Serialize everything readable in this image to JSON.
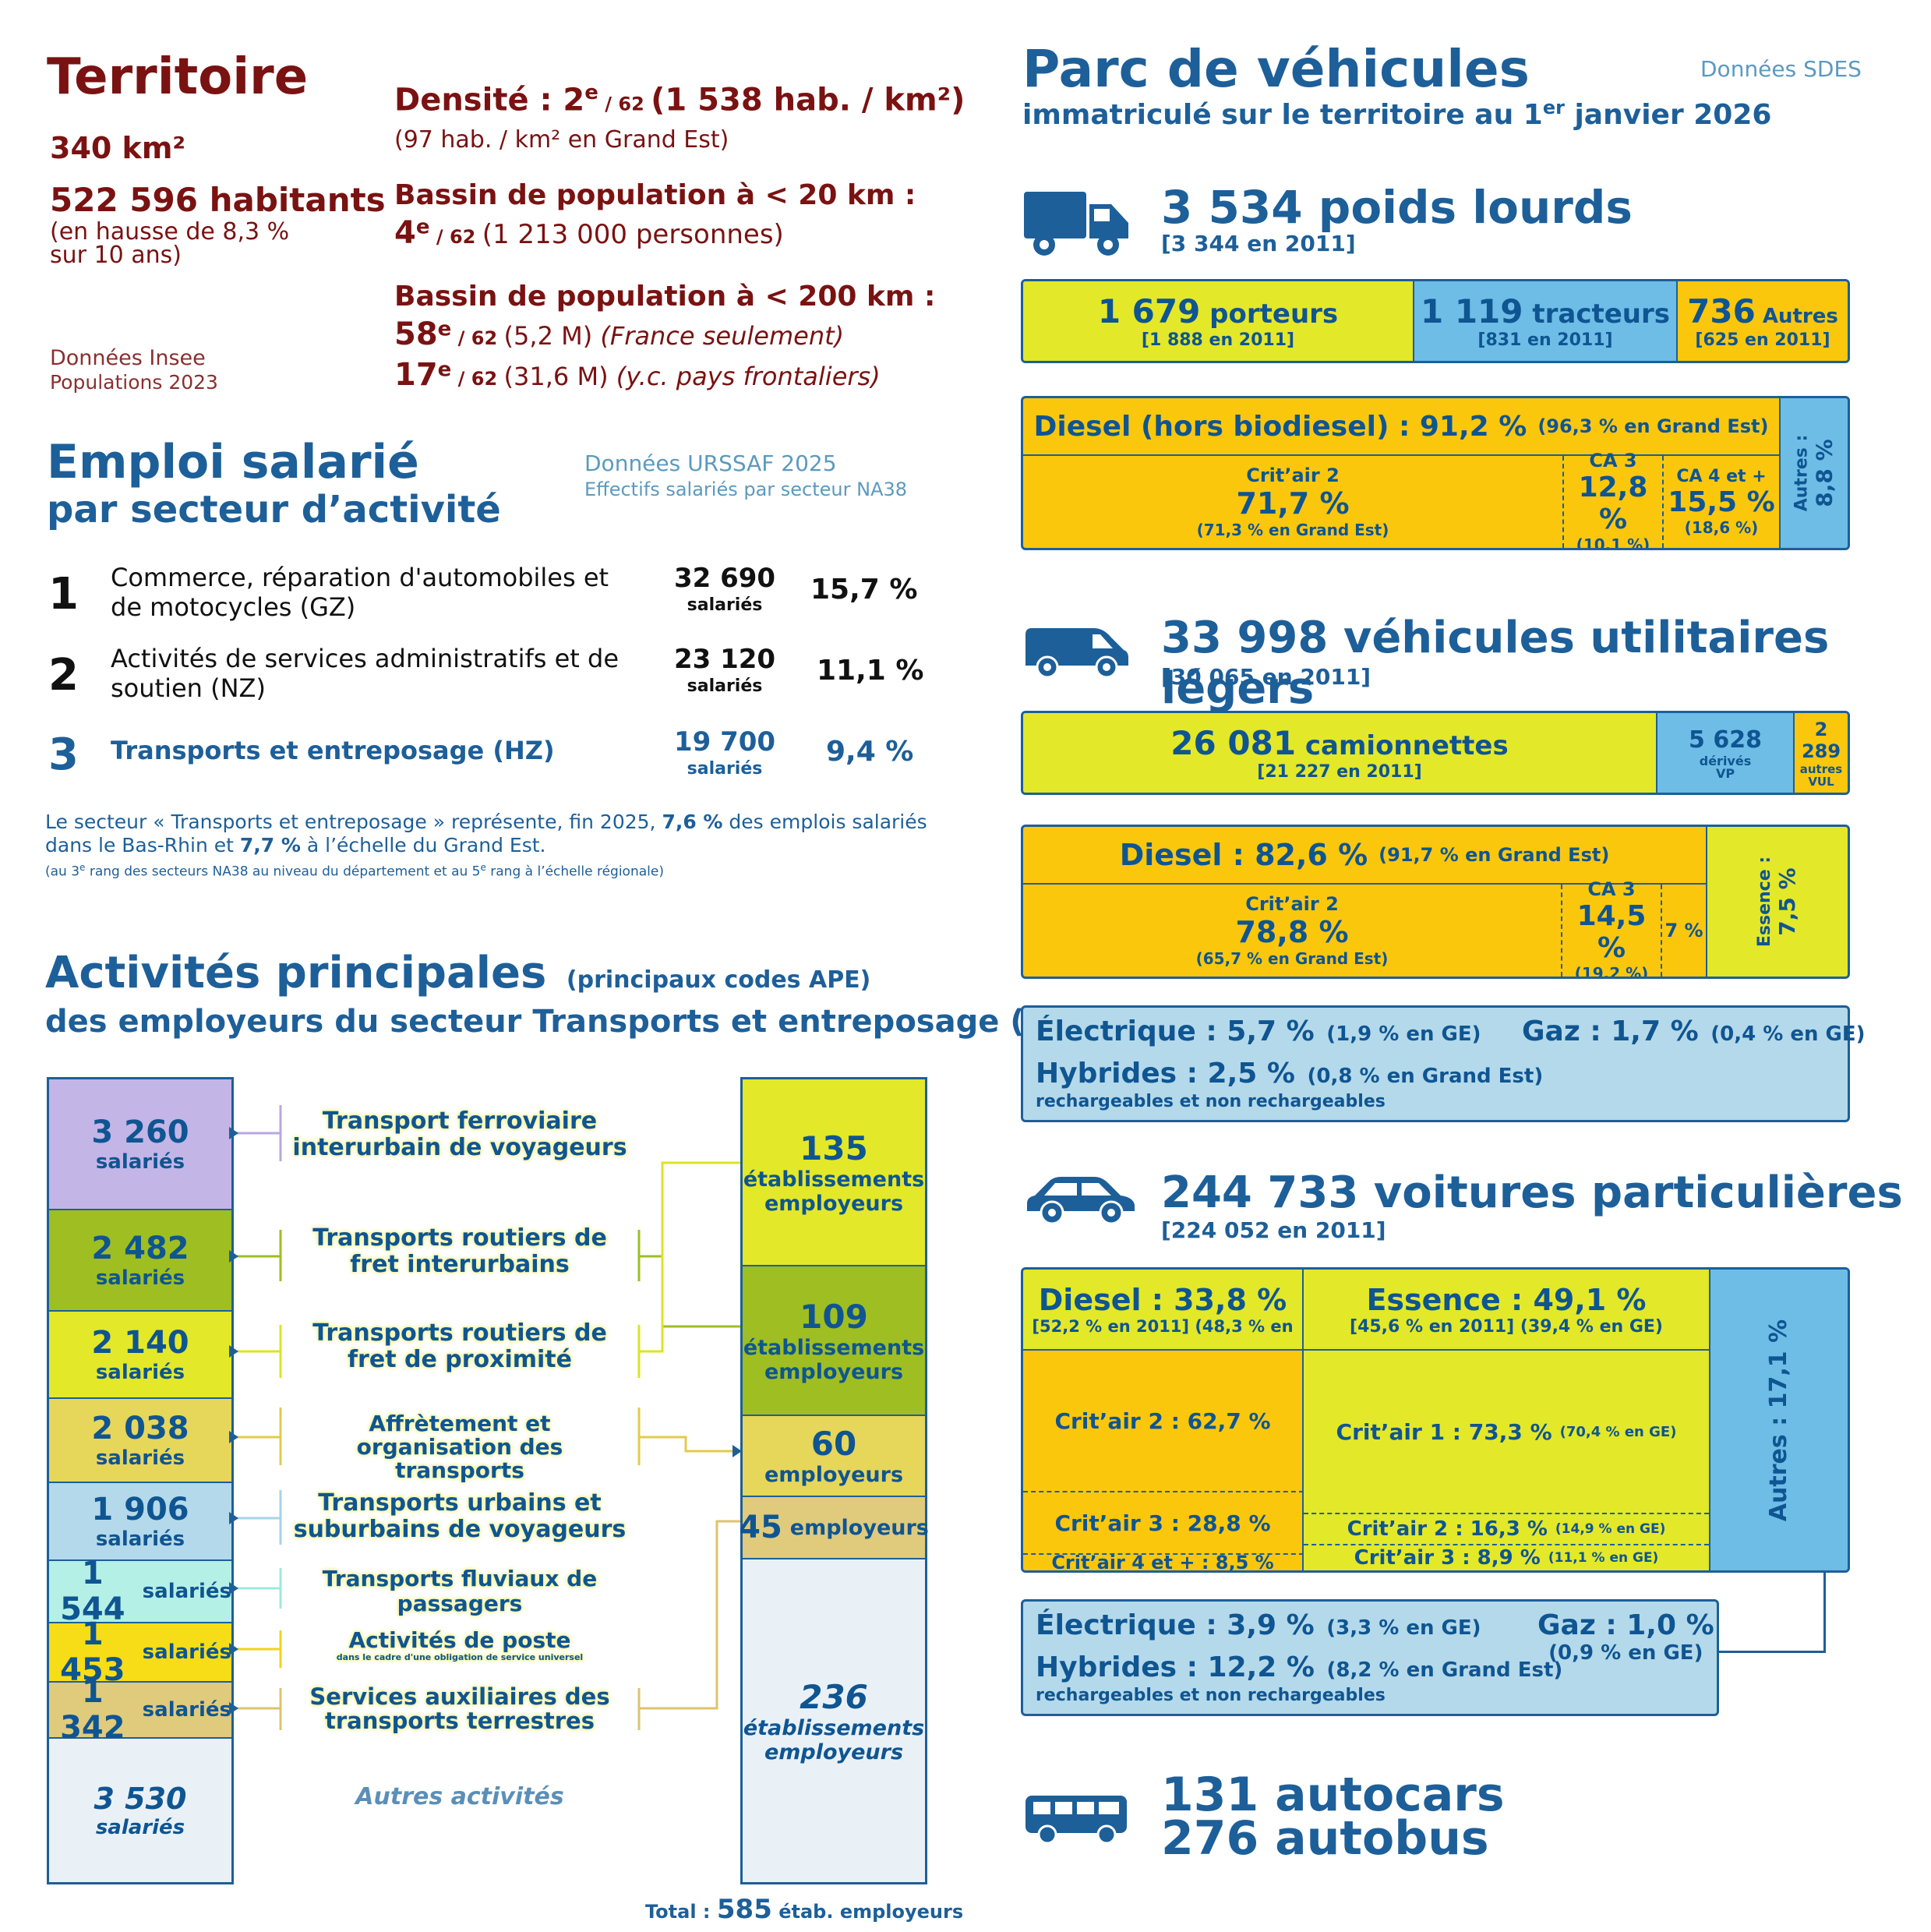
{
  "territoire": {
    "title": "Territoire",
    "area": "340 km²",
    "habitants": "522 596 habitants",
    "habitants_note1": "(en hausse de 8,3 %",
    "habitants_note2": "sur 10 ans)",
    "source1": "Données Insee",
    "source2": "Populations 2023",
    "densite_label": "Densité : 2",
    "densite_sup": "e",
    "densite_rank": " / 62 ",
    "densite_value": "(1 538 hab. / km²)",
    "densite_note": "(97 hab. / km² en Grand Est)",
    "bassin20_label": "Bassin de population à < 20 km :",
    "bassin20_rank": "4",
    "bassin20_sup": "e",
    "bassin20_of": " / 62 ",
    "bassin20_value": "(1 213 000 personnes)",
    "bassin200_label": "Bassin de population à < 200 km :",
    "bassin200_rank1": "58",
    "bassin200_sup1": "e",
    "bassin200_of1": " / 62 ",
    "bassin200_value1": "(5,2 M) ",
    "bassin200_note1": "(France seulement)",
    "bassin200_rank2": "17",
    "bassin200_sup2": "e",
    "bassin200_of2": " / 62 ",
    "bassin200_value2": "(31,6 M) ",
    "bassin200_note2": "(y.c. pays frontaliers)"
  },
  "emploi": {
    "title1": "Emploi salarié",
    "title2": "par secteur d’activité",
    "source1": "Données URSSAF 2025",
    "source2": "Effectifs salariés par secteur NA38",
    "rows": [
      {
        "rank": "1",
        "label1": "Commerce, réparation d'automobiles et",
        "label2": "de motocycles (GZ)",
        "count": "32 690",
        "unit": "salariés",
        "pct": "15,7 %"
      },
      {
        "rank": "2",
        "label1": "Activités de services administratifs et de",
        "label2": "soutien (NZ)",
        "count": "23 120",
        "unit": "salariés",
        "pct": "11,1 %"
      },
      {
        "rank": "3",
        "label1": "Transports et entreposage (HZ)",
        "label2": "",
        "count": "19 700",
        "unit": "salariés",
        "pct": "9,4 %"
      }
    ],
    "note_a": "Le secteur « Transports et entreposage » représente, fin 2025, ",
    "note_b": "7,6 %",
    "note_c": " des emplois salariés",
    "note_d": "dans le Bas-Rhin et ",
    "note_e": "7,7 %",
    "note_f": " à l’échelle du Grand Est.",
    "note_small_a": "(au 3",
    "note_small_sup1": "e",
    "note_small_b": " rang des secteurs NA38 au niveau du département et au 5",
    "note_small_sup2": "e",
    "note_small_c": " rang à l’échelle régionale)"
  },
  "activites": {
    "title": "Activités principales",
    "title_note": "(principaux codes APE)",
    "subtitle": "des employeurs du secteur Transports et entreposage (HZ)",
    "salaries": [
      {
        "value": "3 260",
        "unit": "salariés",
        "color": "#c3b5e6"
      },
      {
        "value": "2 482",
        "unit": "salariés",
        "color": "#9fbe22"
      },
      {
        "value": "2 140",
        "unit": "salariés",
        "color": "#e3e829"
      },
      {
        "value": "2 038",
        "unit": "salariés",
        "color": "#e6d65a"
      },
      {
        "value": "1 906",
        "unit": "salariés",
        "color": "#b4d9ea"
      },
      {
        "value": "1 544",
        "unit": "salariés",
        "color": "#b5f0e6"
      },
      {
        "value": "1 453",
        "unit": "salariés",
        "color": "#f7dc18"
      },
      {
        "value": "1 342",
        "unit": "salariés",
        "color": "#e0ca7c"
      },
      {
        "value": "3 530",
        "unit": "salariés",
        "color": "#e9f1f7"
      }
    ],
    "labels": [
      {
        "l1": "Transport ferroviaire",
        "l2": "interurbain de voyageurs"
      },
      {
        "l1": "Transports routiers de",
        "l2": "fret interurbains"
      },
      {
        "l1": "Transports routiers de",
        "l2": "fret de proximité"
      },
      {
        "l1": "Affrètement et",
        "l2": "organisation des transports"
      },
      {
        "l1": "Transports urbains et",
        "l2": "suburbains de voyageurs"
      },
      {
        "l1": "Transports fluviaux de",
        "l2": "passagers"
      },
      {
        "l1": "Activités de poste",
        "l2": "dans le cadre d'une obligation de service universel"
      },
      {
        "l1": "Services auxiliaires des",
        "l2": "transports terrestres"
      }
    ],
    "autres": "Autres activités",
    "etab": [
      {
        "value": "135",
        "l1": "établissements",
        "l2": "employeurs"
      },
      {
        "value": "109",
        "l1": "établissements",
        "l2": "employeurs"
      },
      {
        "value": "60",
        "l1": "employeurs",
        "l2": ""
      },
      {
        "value": "45",
        "l1": "employeurs",
        "l2": ""
      },
      {
        "value": "236",
        "l1": "établissements",
        "l2": "employeurs"
      }
    ],
    "total_a": "Total : ",
    "total_b": "585",
    "total_c": " étab. employeurs"
  },
  "parc": {
    "title": "Parc de véhicules",
    "subtitle_a": "immatriculé sur le territoire au 1",
    "subtitle_sup": "er",
    "subtitle_b": " janvier 2026",
    "source": "Données SDES",
    "pl": {
      "title": "3 534 poids lourds",
      "sub": "[3 344 en 2011]",
      "porteurs_v": "1 679",
      "porteurs_l": " porteurs",
      "porteurs_s": "[1 888 en 2011]",
      "tracteurs_v": "1 119",
      "tracteurs_l": " tracteurs",
      "tracteurs_s": "[831 en 2011]",
      "autres_v": "736",
      "autres_l": " Autres",
      "autres_s": "[625 en 2011]",
      "diesel": "Diesel (hors biodiesel) : 91,2 %",
      "diesel_s": "(96,3 % en Grand Est)",
      "c2_l": "Crit’air 2",
      "c2_v": "71,7 %",
      "c2_s": "(71,3 % en Grand Est)",
      "ca3_l": "CA 3",
      "ca3_v": "12,8 %",
      "ca3_s": "(10,1 %)",
      "ca4_l": "CA 4 et +",
      "ca4_v": "15,5 %",
      "ca4_s": "(18,6 %)",
      "autres_side": "Autres :",
      "autres_side_v": "8,8 %"
    },
    "vul": {
      "title": "33 998 véhicules utilitaires légers",
      "sub": "[30 065 en 2011]",
      "cam_v": "26 081",
      "cam_l": " camionnettes",
      "cam_s": "[21 227 en 2011]",
      "der_v": "5 628",
      "der_l1": "dérivés",
      "der_l2": "VP",
      "aut_v": "2 289",
      "aut_l1": "autres",
      "aut_l2": "VUL",
      "diesel": "Diesel : 82,6 %",
      "diesel_s": "(91,7 % en Grand Est)",
      "c2_l": "Crit’air 2",
      "c2_v": "78,8 %",
      "c2_s": "(65,7 % en Grand Est)",
      "ca3_l": "CA 3",
      "ca3_v": "14,5 %",
      "ca3_s": "(19,2 %)",
      "ca4_v": "7 %",
      "essence": "Essence :",
      "essence_v": "7,5 %",
      "elec": "Électrique : 5,7 %",
      "elec_s": "(1,9 % en GE)",
      "gaz": "Gaz : 1,7 %",
      "gaz_s": "(0,4 % en GE)",
      "hyb": "Hybrides : 2,5 %",
      "hyb_s": "(0,8 % en Grand Est)",
      "hyb_n": "rechargeables et non rechargeables"
    },
    "vp": {
      "title": "244 733 voitures particulières",
      "sub": "[224 052 en 2011]",
      "diesel": "Diesel : 33,8 %",
      "diesel_s": "[52,2 % en 2011]  (48,3 % en",
      "essence": "Essence : 49,1 %",
      "essence_s": "[45,6 % en 2011]  (39,4 % en GE)",
      "d_c2": "Crit’air 2 : 62,7 %",
      "d_c3": "Crit’air 3 : 28,8 %",
      "d_c4": "Crit’air 4 et + : 8,5 %",
      "e_c1": "Crit’air 1 : 73,3 %",
      "e_c1_s": "(70,4 % en GE)",
      "e_c2": "Crit’air 2 : 16,3 %",
      "e_c2_s": "(14,9 % en GE)",
      "e_c3": "Crit’air 3 : 8,9 %",
      "e_c3_s": "(11,1 % en GE)",
      "autres": "Autres : 17,1 %",
      "elec": "Électrique : 3,9 %",
      "elec_s": "(3,3 % en GE)",
      "gaz": "Gaz : 1,0 %",
      "gaz_s": "(0,9 % en GE)",
      "hyb": "Hybrides : 12,2 %",
      "hyb_s": "(8,2 % en Grand Est)",
      "hyb_n": "rechargeables et non rechargeables"
    },
    "cars": {
      "autocars": "131 autocars",
      "autobus": "276 autobus"
    }
  }
}
